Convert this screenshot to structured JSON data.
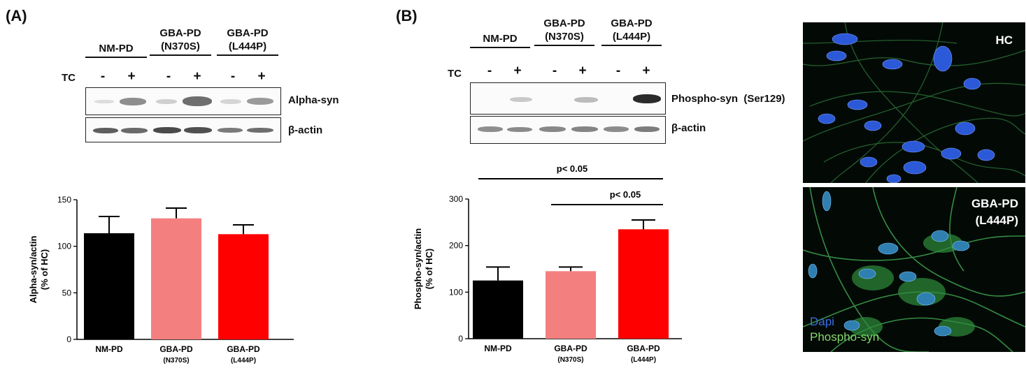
{
  "panelA": {
    "label": "(A)",
    "groups": [
      {
        "name": "NM-PD",
        "variant": ""
      },
      {
        "name": "GBA-PD",
        "variant": "(N370S)"
      },
      {
        "name": "GBA-PD",
        "variant": "(L444P)"
      }
    ],
    "tc_label": "TC",
    "tc_minus": "-",
    "tc_plus": "+",
    "blot_labels": [
      "Alpha-syn",
      "β-actin"
    ]
  },
  "panelB": {
    "label": "(B)",
    "groups": [
      {
        "name": "NM-PD",
        "variant": ""
      },
      {
        "name": "GBA-PD",
        "variant": "(N370S)"
      },
      {
        "name": "GBA-PD",
        "variant": "(L444P)"
      }
    ],
    "tc_label": "TC",
    "tc_minus": "-",
    "tc_plus": "+",
    "blot_labels": [
      "Phospho-syn  (Ser129)",
      "β-actin"
    ]
  },
  "microscopy": {
    "top_label": "HC",
    "bottom_label_line1": "GBA-PD",
    "bottom_label_line2": "(L444P)",
    "legend_dapi": "Dapi",
    "legend_phospho": "Phospho-syn"
  },
  "chart_data": [
    {
      "type": "bar",
      "title": "",
      "categories": [
        "NM-PD",
        "GBA-PD\n(N370S)",
        "GBA-PD\n(L444P)"
      ],
      "values": [
        114,
        130,
        113
      ],
      "errors": [
        18,
        11,
        10
      ],
      "colors": [
        "#000000",
        "#f47f7f",
        "#ff0000"
      ],
      "ylabel_line1": "Alpha-syn/actin",
      "ylabel_line2": "(% of HC)",
      "xlabel": "",
      "ylim": [
        0,
        150
      ],
      "yticks": [
        0,
        50,
        100,
        150
      ],
      "significance": []
    },
    {
      "type": "bar",
      "title": "",
      "categories": [
        "NM-PD",
        "GBA-PD\n(N370S)",
        "GBA-PD\n(L444P)"
      ],
      "values": [
        125,
        145,
        235
      ],
      "errors": [
        29,
        9,
        20
      ],
      "colors": [
        "#000000",
        "#f47f7f",
        "#ff0000"
      ],
      "ylabel_line1": "Phospho-syn/actin",
      "ylabel_line2": "(% of HC)",
      "xlabel": "",
      "ylim": [
        0,
        300
      ],
      "yticks": [
        0,
        100,
        200,
        300
      ],
      "significance": [
        {
          "from": 0,
          "to": 2,
          "label": "p< 0.05"
        },
        {
          "from": 1,
          "to": 2,
          "label": "p< 0.05"
        }
      ]
    }
  ]
}
